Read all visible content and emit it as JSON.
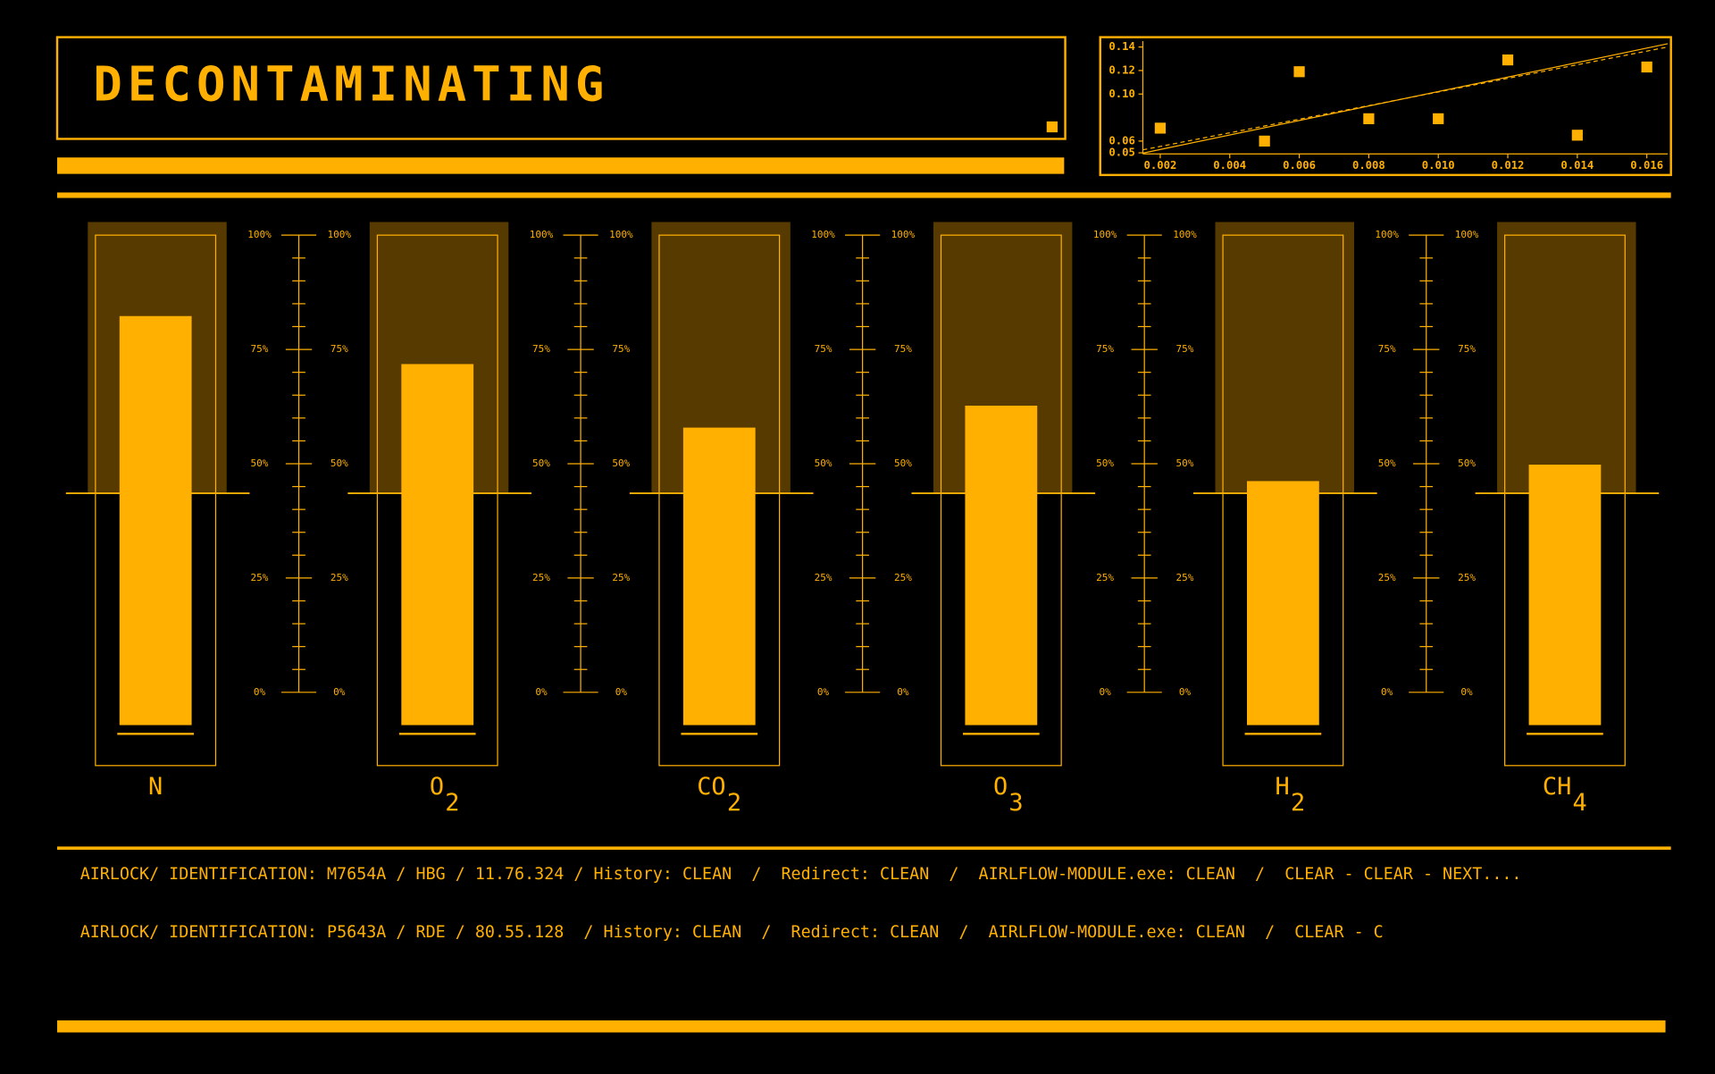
{
  "header": {
    "title": "DECONTAMINATING"
  },
  "chart_data": [
    {
      "type": "scatter",
      "x": [
        0.002,
        0.005,
        0.006,
        0.008,
        0.01,
        0.012,
        0.014,
        0.016
      ],
      "values": [
        0.071,
        0.06,
        0.119,
        0.079,
        0.079,
        0.129,
        0.065,
        0.123
      ],
      "color": "#ffb000",
      "xlim": [
        0.0015,
        0.0166
      ],
      "xticks": [
        0.002,
        0.004,
        0.006,
        0.008,
        {
          "value": 0.01,
          "label": "0.010"
        },
        0.012,
        0.014,
        0.016
      ],
      "ylim": [
        0.05,
        0.145
      ],
      "yticks": [
        0.14,
        0.12,
        {
          "value": 0.1,
          "label": "0.10"
        },
        0.05,
        0.06
      ]
    },
    {
      "type": "bar",
      "categories": [
        "N",
        "O",
        "CO",
        "O",
        "H",
        "CH"
      ],
      "category_subscripts": [
        null,
        "2",
        "2",
        "3",
        "2",
        "4"
      ],
      "values": [
        82.3,
        71.8,
        57.9,
        62.7,
        46.2,
        49.8
      ],
      "color": "#ffb000",
      "ylim": [
        0,
        100
      ],
      "yticks": [
        {
          "value": 100,
          "label": "100%"
        },
        {
          "value": 75,
          "label": "75%"
        },
        {
          "value": 50,
          "label": "50%"
        },
        {
          "value": 25,
          "label": "25%"
        },
        {
          "value": 0,
          "label": "0%"
        }
      ]
    }
  ],
  "log": [
    "AIRLOCK/ IDENTIFICATION: M7654A / HBG / 11.76.324 / History: CLEAN  /  Redirect: CLEAN  /  AIRLFLOW-MODULE.exe: CLEAN  /  CLEAR - CLEAR - NEXT....",
    "AIRLOCK/ IDENTIFICATION: P5643A / RDE / 80.55.128  / History: CLEAN  /  Redirect: CLEAN  /  AIRLFLOW-MODULE.exe: CLEAN  /  CLEAR - C"
  ]
}
